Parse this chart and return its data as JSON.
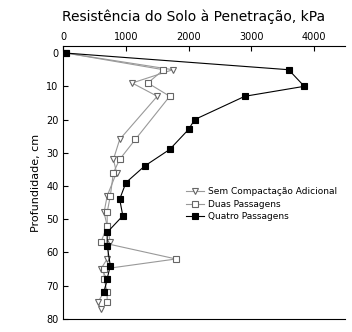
{
  "title": "Resistência do Solo à Penetração, kPa",
  "ylabel": "Profundidade, cm",
  "xlim": [
    0,
    4500
  ],
  "ylim": [
    80,
    -2
  ],
  "xticks": [
    0,
    1000,
    2000,
    3000,
    4000
  ],
  "yticks": [
    0,
    10,
    20,
    30,
    40,
    50,
    60,
    70,
    80
  ],
  "series": [
    {
      "label": "Sem Compactação Adicional",
      "marker": "v",
      "x": [
        50,
        1750,
        1100,
        1500,
        900,
        800,
        850,
        700,
        650,
        700,
        750,
        700,
        600,
        700,
        650,
        550,
        600
      ],
      "y": [
        0,
        5,
        9,
        13,
        26,
        32,
        36,
        43,
        48,
        52,
        57,
        62,
        65,
        68,
        72,
        75,
        77
      ]
    },
    {
      "label": "Duas Passagens",
      "marker": "s",
      "x": [
        50,
        1600,
        1350,
        1700,
        1150,
        900,
        800,
        750,
        700,
        700,
        600,
        1800,
        650,
        650,
        700,
        700
      ],
      "y": [
        0,
        5,
        9,
        13,
        26,
        32,
        36,
        43,
        48,
        52,
        57,
        62,
        65,
        68,
        72,
        75
      ]
    },
    {
      "label": "Quatro Passagens",
      "marker": "s",
      "filled": true,
      "x": [
        50,
        3600,
        3850,
        2900,
        2100,
        2000,
        1700,
        1300,
        1000,
        900,
        950,
        700,
        700,
        750,
        700,
        650
      ],
      "y": [
        0,
        5,
        10,
        13,
        20,
        23,
        29,
        34,
        39,
        44,
        49,
        54,
        58,
        64,
        68,
        72
      ]
    }
  ],
  "legend_labels": [
    "Sem Compactação Adicional",
    "Duas Passagens",
    "Quatro Passagens"
  ],
  "title_fontsize": 10,
  "label_fontsize": 8,
  "tick_fontsize": 7,
  "legend_fontsize": 6.5
}
